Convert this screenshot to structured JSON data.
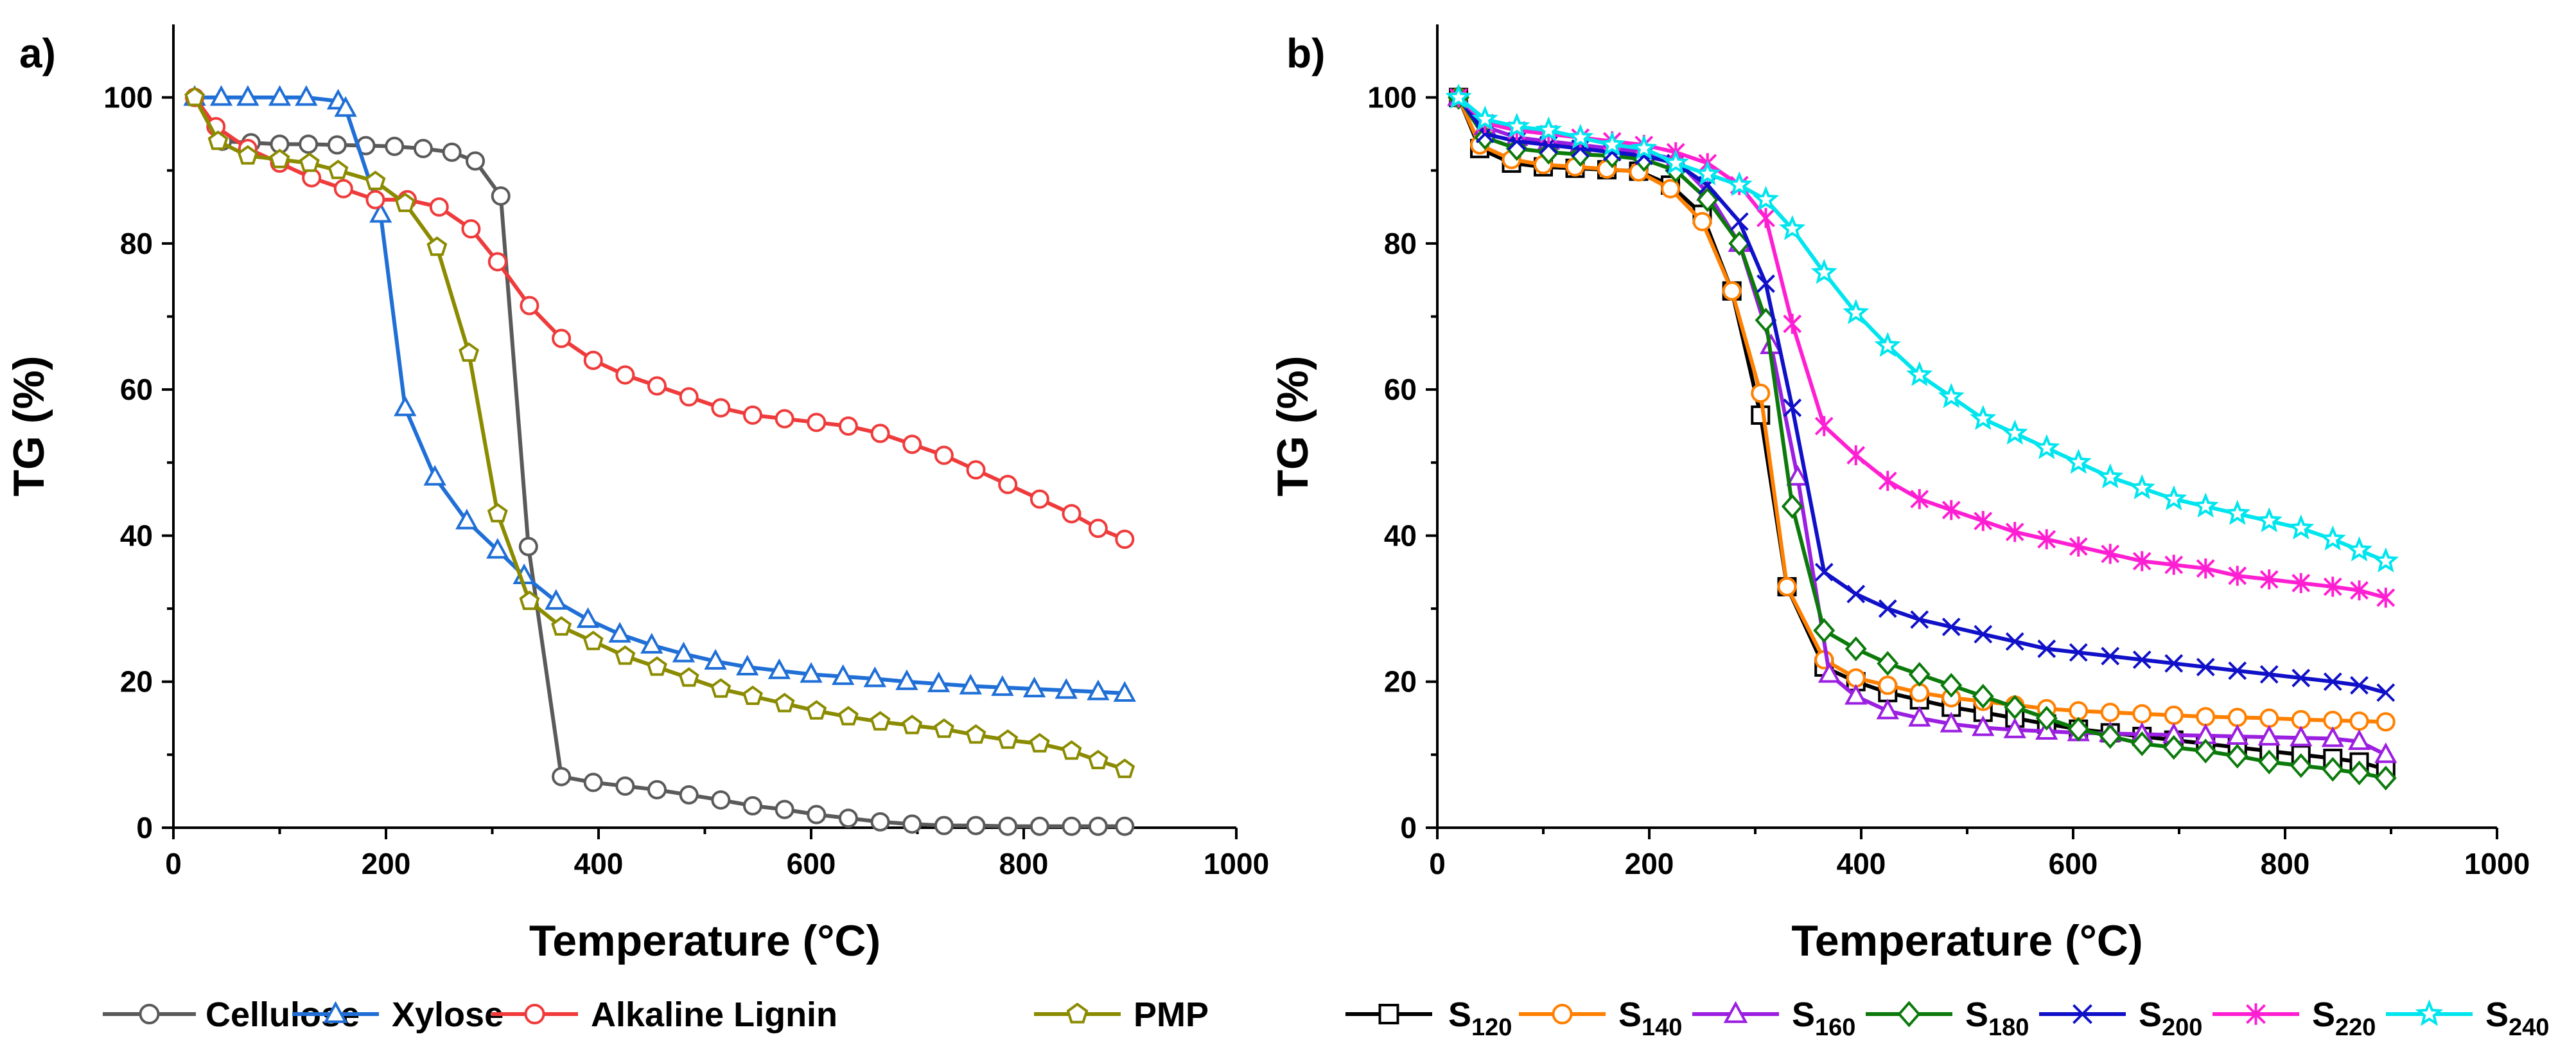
{
  "chart_data": [
    {
      "panel_label": "a)",
      "type": "line",
      "xlabel": "Temperature (°C)",
      "ylabel": "TG (%)",
      "xlim": [
        0,
        1000
      ],
      "ylim": [
        0,
        110
      ],
      "xticks": [
        0,
        200,
        400,
        600,
        800,
        1000
      ],
      "yticks": [
        0,
        20,
        40,
        60,
        80,
        100
      ],
      "grid": false,
      "legend_position": "bottom",
      "series": [
        {
          "name": "Cellulose",
          "color": "#5a5a5a",
          "marker": "circle",
          "x": [
            20,
            46,
            73,
            100,
            127,
            154,
            181,
            208,
            235,
            262,
            284,
            308,
            334,
            365,
            395,
            425,
            455,
            485,
            515,
            545,
            575,
            605,
            635,
            665,
            695,
            725,
            755,
            785,
            815,
            845,
            870,
            895
          ],
          "y": [
            100,
            94,
            93.8,
            93.6,
            93.6,
            93.5,
            93.4,
            93.3,
            93,
            92.5,
            91.3,
            86.5,
            38.5,
            7,
            6.2,
            5.7,
            5.2,
            4.5,
            3.8,
            3,
            2.5,
            1.8,
            1.3,
            0.8,
            0.5,
            0.3,
            0.3,
            0.2,
            0.2,
            0.2,
            0.2,
            0.2
          ]
        },
        {
          "name": "Xylose",
          "color": "#1f6fd6",
          "marker": "triangle",
          "x": [
            20,
            45,
            70,
            100,
            125,
            155,
            162,
            195,
            218,
            246,
            276,
            305,
            330,
            360,
            390,
            420,
            450,
            480,
            510,
            540,
            570,
            600,
            630,
            660,
            690,
            720,
            750,
            780,
            810,
            840,
            870,
            895
          ],
          "y": [
            100,
            100,
            100,
            100,
            100,
            99.5,
            98.5,
            84,
            57.5,
            48,
            42,
            38,
            34.5,
            31,
            28.5,
            26.5,
            25,
            23.8,
            22.8,
            22,
            21.5,
            21,
            20.7,
            20.4,
            20,
            19.7,
            19.4,
            19.2,
            19,
            18.8,
            18.6,
            18.4
          ]
        },
        {
          "name": "Alkaline Lignin",
          "color": "#ef3b3b",
          "marker": "circle",
          "x": [
            20,
            40,
            70,
            100,
            130,
            160,
            190,
            220,
            250,
            280,
            305,
            335,
            365,
            395,
            425,
            455,
            485,
            515,
            545,
            575,
            605,
            635,
            665,
            695,
            725,
            755,
            785,
            815,
            845,
            870,
            895
          ],
          "y": [
            100,
            96,
            93,
            91,
            89,
            87.5,
            86,
            86,
            85,
            82,
            77.5,
            71.5,
            67,
            64,
            62,
            60.5,
            59,
            57.5,
            56.5,
            56,
            55.5,
            55,
            54,
            52.5,
            51,
            49,
            47,
            45,
            43,
            41,
            39.5
          ]
        },
        {
          "name": "PMP",
          "color": "#8b8b00",
          "marker": "pentagon",
          "x": [
            20,
            42,
            70,
            100,
            128,
            155,
            190,
            218,
            248,
            278,
            305,
            335,
            365,
            395,
            425,
            455,
            485,
            515,
            545,
            575,
            605,
            635,
            665,
            695,
            725,
            755,
            785,
            815,
            845,
            870,
            895
          ],
          "y": [
            100,
            94,
            92,
            91.5,
            91,
            90,
            88.5,
            85.5,
            79.5,
            65,
            43,
            31,
            27.5,
            25.5,
            23.5,
            22,
            20.5,
            19,
            18,
            17,
            16,
            15.2,
            14.5,
            14,
            13.5,
            12.7,
            12,
            11.5,
            10.5,
            9.2,
            8
          ]
        }
      ]
    },
    {
      "panel_label": "b)",
      "type": "line",
      "xlabel": "Temperature (°C)",
      "ylabel": "TG (%)",
      "xlim": [
        0,
        1000
      ],
      "ylim": [
        0,
        110
      ],
      "xticks": [
        0,
        200,
        400,
        600,
        800,
        1000
      ],
      "yticks": [
        0,
        20,
        40,
        60,
        80,
        100
      ],
      "grid": false,
      "legend_position": "bottom",
      "series": [
        {
          "name": "S",
          "subscript": "120",
          "color": "#000000",
          "marker": "square",
          "x": [
            20,
            40,
            70,
            100,
            130,
            160,
            190,
            220,
            250,
            278,
            305,
            330,
            365,
            395,
            425,
            455,
            485,
            515,
            545,
            575,
            605,
            635,
            665,
            695,
            725,
            755,
            785,
            815,
            845,
            870,
            895
          ],
          "y": [
            100,
            93,
            91,
            90.5,
            90.3,
            90.1,
            89.9,
            88,
            84,
            73.5,
            56.5,
            33,
            22,
            20,
            18.5,
            17.5,
            16.5,
            15.8,
            15,
            14.2,
            13.5,
            13,
            12.5,
            12,
            11.5,
            11,
            10.5,
            10,
            9.5,
            9,
            8
          ]
        },
        {
          "name": "S",
          "subscript": "140",
          "color": "#ff8000",
          "marker": "circle",
          "x": [
            20,
            40,
            70,
            100,
            130,
            160,
            190,
            220,
            250,
            278,
            305,
            330,
            365,
            395,
            425,
            455,
            485,
            515,
            545,
            575,
            605,
            635,
            665,
            695,
            725,
            755,
            785,
            815,
            845,
            870,
            895
          ],
          "y": [
            100,
            93.5,
            91.5,
            90.8,
            90.5,
            90.2,
            89.8,
            87.5,
            83,
            73.5,
            59.5,
            33,
            23,
            20.5,
            19.5,
            18.5,
            17.8,
            17.3,
            16.8,
            16.3,
            16,
            15.8,
            15.6,
            15.4,
            15.2,
            15.1,
            15,
            14.8,
            14.7,
            14.6,
            14.5
          ]
        },
        {
          "name": "S",
          "subscript": "160",
          "color": "#9b1fe0",
          "marker": "triangle",
          "x": [
            20,
            45,
            75,
            105,
            135,
            165,
            195,
            225,
            255,
            285,
            315,
            340,
            370,
            395,
            425,
            455,
            485,
            515,
            545,
            575,
            605,
            635,
            665,
            695,
            725,
            755,
            785,
            815,
            845,
            870,
            895
          ],
          "y": [
            100,
            96,
            94.5,
            94,
            93.5,
            93,
            92.5,
            91.5,
            87,
            80,
            66,
            48,
            21,
            18,
            16,
            15,
            14.2,
            13.7,
            13.4,
            13.2,
            13,
            12.9,
            12.8,
            12.7,
            12.6,
            12.5,
            12.4,
            12.3,
            12.2,
            11.8,
            10
          ]
        },
        {
          "name": "S",
          "subscript": "180",
          "color": "#0b7a0b",
          "marker": "diamond",
          "x": [
            20,
            45,
            75,
            105,
            135,
            165,
            195,
            225,
            255,
            285,
            310,
            335,
            365,
            395,
            425,
            455,
            485,
            515,
            545,
            575,
            605,
            635,
            665,
            695,
            725,
            755,
            785,
            815,
            845,
            870,
            895
          ],
          "y": [
            100,
            94.5,
            93,
            92.5,
            92.2,
            92,
            91.5,
            90,
            86,
            80,
            69.5,
            44,
            27,
            24.5,
            22.5,
            21,
            19.5,
            18,
            16.5,
            15,
            13.5,
            12.5,
            11.5,
            11,
            10.5,
            9.8,
            9,
            8.5,
            8,
            7.5,
            6.8
          ]
        },
        {
          "name": "S",
          "subscript": "200",
          "color": "#1010c8",
          "marker": "x",
          "x": [
            20,
            45,
            75,
            105,
            135,
            165,
            195,
            225,
            255,
            285,
            310,
            335,
            365,
            395,
            425,
            455,
            485,
            515,
            545,
            575,
            605,
            635,
            665,
            695,
            725,
            755,
            785,
            815,
            845,
            870,
            895
          ],
          "y": [
            100,
            95,
            94,
            93.5,
            93,
            92.5,
            92,
            91,
            88,
            83,
            74.5,
            57.5,
            35,
            32,
            30,
            28.5,
            27.5,
            26.5,
            25.5,
            24.5,
            24,
            23.5,
            23,
            22.5,
            22,
            21.5,
            21,
            20.5,
            20,
            19.5,
            18.5
          ]
        },
        {
          "name": "S",
          "subscript": "220",
          "color": "#ff1fd2",
          "marker": "asterisk",
          "x": [
            20,
            45,
            75,
            105,
            135,
            165,
            195,
            225,
            255,
            285,
            310,
            335,
            365,
            395,
            425,
            455,
            485,
            515,
            545,
            575,
            605,
            635,
            665,
            695,
            725,
            755,
            785,
            815,
            845,
            870,
            895
          ],
          "y": [
            100,
            96.5,
            95.5,
            95,
            94.5,
            94,
            93.5,
            92.5,
            91,
            88,
            83.5,
            69,
            55,
            51,
            47.5,
            45,
            43.5,
            42,
            40.5,
            39.5,
            38.5,
            37.5,
            36.5,
            36,
            35.5,
            34.5,
            34,
            33.5,
            33,
            32.5,
            31.5
          ]
        },
        {
          "name": "S",
          "subscript": "240",
          "color": "#00e5ee",
          "marker": "star",
          "x": [
            20,
            45,
            75,
            105,
            135,
            165,
            195,
            225,
            255,
            285,
            310,
            335,
            365,
            395,
            425,
            455,
            485,
            515,
            545,
            575,
            605,
            635,
            665,
            695,
            725,
            755,
            785,
            815,
            845,
            870,
            895
          ],
          "y": [
            100,
            97,
            96,
            95.5,
            94.5,
            93.5,
            93,
            91,
            89.5,
            88,
            86,
            82,
            76,
            70.5,
            66,
            62,
            59,
            56,
            54,
            52,
            50,
            48,
            46.5,
            45,
            44,
            43,
            42,
            41,
            39.5,
            38,
            36.5
          ]
        }
      ]
    }
  ]
}
